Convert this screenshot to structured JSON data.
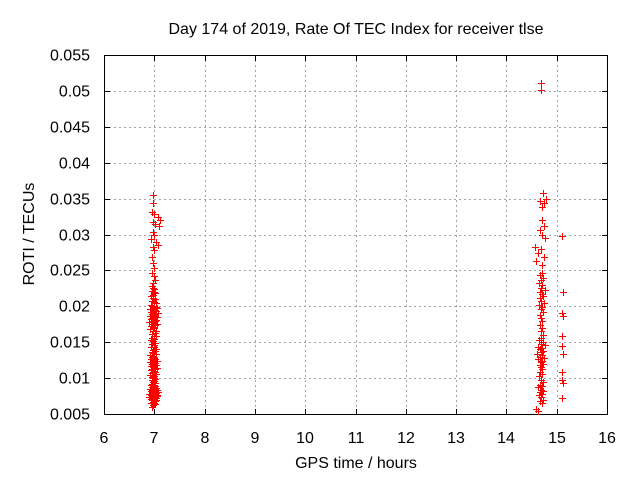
{
  "chart": {
    "title": "Day 174 of 2019, Rate Of TEC Index for receiver tlse",
    "xlabel": "GPS time / hours",
    "ylabel": "ROTI / TECUs"
  },
  "chart_data": {
    "type": "scatter",
    "title": "Day 174 of 2019, Rate Of TEC Index for receiver tlse",
    "xlabel": "GPS time / hours",
    "ylabel": "ROTI / TECUs",
    "xlim": [
      6,
      16
    ],
    "ylim": [
      0.005,
      0.055
    ],
    "x_ticks": {
      "values": [
        6,
        7,
        8,
        9,
        10,
        11,
        12,
        13,
        14,
        15,
        16
      ],
      "labels": [
        "6",
        "7",
        "8",
        "9",
        "10",
        "11",
        "12",
        "13",
        "14",
        "15",
        "16"
      ]
    },
    "y_ticks": {
      "values": [
        0.005,
        0.01,
        0.015,
        0.02,
        0.025,
        0.03,
        0.035,
        0.04,
        0.045,
        0.05,
        0.055
      ],
      "labels": [
        "0.005",
        "0.01",
        "0.015",
        "0.02",
        "0.025",
        "0.03",
        "0.035",
        "0.04",
        "0.045",
        "0.05",
        "0.055"
      ]
    },
    "grid": true,
    "legend": "none",
    "marker": {
      "shape": "plus",
      "color": "#ff0000",
      "size": 7
    },
    "grid_color": "#a3a3a3",
    "axis_color": "#000000",
    "series": [
      {
        "name": "ROTI",
        "points": [
          [
            6.98,
            0.0355
          ],
          [
            6.97,
            0.0344
          ],
          [
            6.95,
            0.0331
          ],
          [
            6.99,
            0.0328
          ],
          [
            7.08,
            0.0324
          ],
          [
            7.12,
            0.032
          ],
          [
            6.97,
            0.0318
          ],
          [
            7.02,
            0.0315
          ],
          [
            7.1,
            0.0312
          ],
          [
            6.98,
            0.0304
          ],
          [
            7.0,
            0.0299
          ],
          [
            6.94,
            0.0294
          ],
          [
            7.04,
            0.0289
          ],
          [
            7.07,
            0.0286
          ],
          [
            6.97,
            0.0283
          ],
          [
            6.99,
            0.0278
          ],
          [
            6.96,
            0.0269
          ],
          [
            6.98,
            0.0261
          ],
          [
            7.0,
            0.0254
          ],
          [
            6.96,
            0.0247
          ],
          [
            6.99,
            0.0242
          ],
          [
            7.02,
            0.0237
          ],
          [
            6.97,
            0.0232
          ],
          [
            6.95,
            0.0228
          ],
          [
            6.98,
            0.0226
          ],
          [
            7.0,
            0.0224
          ],
          [
            6.96,
            0.0222
          ],
          [
            6.99,
            0.022
          ],
          [
            7.01,
            0.0218
          ],
          [
            6.97,
            0.0216
          ],
          [
            6.94,
            0.0214
          ],
          [
            6.98,
            0.0212
          ],
          [
            7.02,
            0.021
          ],
          [
            6.96,
            0.0208
          ],
          [
            6.99,
            0.0206
          ],
          [
            7.04,
            0.0204
          ],
          [
            6.93,
            0.0202
          ],
          [
            7.0,
            0.0201
          ],
          [
            6.95,
            0.02
          ],
          [
            7.03,
            0.0199
          ],
          [
            6.98,
            0.0198
          ],
          [
            7.06,
            0.0197
          ],
          [
            6.92,
            0.0196
          ],
          [
            7.01,
            0.0195
          ],
          [
            6.97,
            0.0194
          ],
          [
            7.04,
            0.0193
          ],
          [
            6.94,
            0.0192
          ],
          [
            6.99,
            0.0191
          ],
          [
            7.07,
            0.019
          ],
          [
            6.96,
            0.0189
          ],
          [
            7.02,
            0.0188
          ],
          [
            6.91,
            0.0187
          ],
          [
            6.98,
            0.0186
          ],
          [
            7.05,
            0.0185
          ],
          [
            6.95,
            0.0184
          ],
          [
            7.0,
            0.0183
          ],
          [
            6.93,
            0.0182
          ],
          [
            7.03,
            0.0181
          ],
          [
            6.97,
            0.018
          ],
          [
            7.01,
            0.0179
          ],
          [
            6.9,
            0.0178
          ],
          [
            6.99,
            0.0177
          ],
          [
            7.05,
            0.0176
          ],
          [
            6.96,
            0.0175
          ],
          [
            7.02,
            0.0174
          ],
          [
            6.94,
            0.0172
          ],
          [
            6.98,
            0.0171
          ],
          [
            7.0,
            0.017
          ],
          [
            6.92,
            0.0168
          ],
          [
            7.04,
            0.0166
          ],
          [
            6.97,
            0.0165
          ],
          [
            7.01,
            0.0163
          ],
          [
            6.95,
            0.0161
          ],
          [
            6.99,
            0.0159
          ],
          [
            7.03,
            0.0158
          ],
          [
            6.96,
            0.0156
          ],
          [
            7.0,
            0.0155
          ],
          [
            6.93,
            0.0153
          ],
          [
            6.98,
            0.0151
          ],
          [
            7.02,
            0.0149
          ],
          [
            6.96,
            0.0147
          ],
          [
            7.0,
            0.0146
          ],
          [
            6.94,
            0.0144
          ],
          [
            6.99,
            0.0143
          ],
          [
            7.03,
            0.0141
          ],
          [
            6.97,
            0.0139
          ],
          [
            7.01,
            0.0138
          ],
          [
            6.95,
            0.0136
          ],
          [
            6.98,
            0.0135
          ],
          [
            7.04,
            0.0133
          ],
          [
            6.92,
            0.0132
          ],
          [
            7.0,
            0.013
          ],
          [
            6.96,
            0.0129
          ],
          [
            6.99,
            0.0128
          ],
          [
            7.02,
            0.0127
          ],
          [
            6.94,
            0.0126
          ],
          [
            6.98,
            0.0125
          ],
          [
            7.05,
            0.0124
          ],
          [
            6.91,
            0.0123
          ],
          [
            6.97,
            0.0122
          ],
          [
            7.01,
            0.0121
          ],
          [
            6.95,
            0.012
          ],
          [
            6.99,
            0.0119
          ],
          [
            7.03,
            0.0118
          ],
          [
            6.93,
            0.0117
          ],
          [
            6.98,
            0.0116
          ],
          [
            7.0,
            0.0115
          ],
          [
            7.05,
            0.0114
          ],
          [
            6.96,
            0.0113
          ],
          [
            7.02,
            0.0112
          ],
          [
            6.94,
            0.0111
          ],
          [
            6.99,
            0.011
          ],
          [
            6.97,
            0.0109
          ],
          [
            7.01,
            0.0108
          ],
          [
            6.95,
            0.0107
          ],
          [
            7.03,
            0.0106
          ],
          [
            6.98,
            0.0105
          ],
          [
            6.92,
            0.0104
          ],
          [
            7.0,
            0.0103
          ],
          [
            6.96,
            0.0102
          ],
          [
            6.99,
            0.01
          ],
          [
            7.02,
            0.0099
          ],
          [
            6.97,
            0.0098
          ],
          [
            6.95,
            0.0097
          ],
          [
            7.0,
            0.0096
          ],
          [
            6.98,
            0.0094
          ],
          [
            7.02,
            0.0093
          ],
          [
            6.96,
            0.0092
          ],
          [
            6.99,
            0.0091
          ],
          [
            6.94,
            0.009
          ],
          [
            7.01,
            0.0089
          ],
          [
            7.0,
            0.0088
          ],
          [
            6.95,
            0.0087
          ],
          [
            7.04,
            0.0086
          ],
          [
            6.98,
            0.0086
          ],
          [
            6.91,
            0.0085
          ],
          [
            7.02,
            0.0084
          ],
          [
            6.96,
            0.0084
          ],
          [
            7.06,
            0.0083
          ],
          [
            6.99,
            0.0082
          ],
          [
            6.93,
            0.0082
          ],
          [
            7.01,
            0.0081
          ],
          [
            6.97,
            0.008
          ],
          [
            7.08,
            0.008
          ],
          [
            6.95,
            0.0079
          ],
          [
            7.03,
            0.0079
          ],
          [
            6.9,
            0.0078
          ],
          [
            6.99,
            0.0078
          ],
          [
            7.05,
            0.0077
          ],
          [
            6.96,
            0.0077
          ],
          [
            7.01,
            0.0076
          ],
          [
            6.93,
            0.0076
          ],
          [
            6.98,
            0.0075
          ],
          [
            7.06,
            0.0075
          ],
          [
            6.95,
            0.0074
          ],
          [
            7.02,
            0.0074
          ],
          [
            6.89,
            0.0073
          ],
          [
            6.99,
            0.0073
          ],
          [
            7.04,
            0.0072
          ],
          [
            6.96,
            0.0072
          ],
          [
            7.0,
            0.0071
          ],
          [
            6.93,
            0.0071
          ],
          [
            6.98,
            0.007
          ],
          [
            7.03,
            0.007
          ],
          [
            6.95,
            0.0069
          ],
          [
            7.01,
            0.0068
          ],
          [
            6.97,
            0.0067
          ],
          [
            6.99,
            0.0066
          ],
          [
            6.94,
            0.0065
          ],
          [
            7.02,
            0.0064
          ],
          [
            6.98,
            0.0062
          ],
          [
            6.96,
            0.006
          ],
          [
            14.69,
            0.0511
          ],
          [
            14.69,
            0.0501
          ],
          [
            14.73,
            0.0358
          ],
          [
            14.78,
            0.035
          ],
          [
            14.67,
            0.0347
          ],
          [
            14.75,
            0.0344
          ],
          [
            14.71,
            0.0338
          ],
          [
            14.7,
            0.032
          ],
          [
            14.74,
            0.0312
          ],
          [
            14.66,
            0.0306
          ],
          [
            14.71,
            0.0299
          ],
          [
            14.76,
            0.0295
          ],
          [
            14.57,
            0.0283
          ],
          [
            14.68,
            0.028
          ],
          [
            14.62,
            0.0274
          ],
          [
            14.74,
            0.0269
          ],
          [
            14.59,
            0.0263
          ],
          [
            14.7,
            0.0258
          ],
          [
            14.7,
            0.0247
          ],
          [
            14.66,
            0.0243
          ],
          [
            14.73,
            0.024
          ],
          [
            14.69,
            0.0236
          ],
          [
            14.64,
            0.0232
          ],
          [
            14.71,
            0.0229
          ],
          [
            14.68,
            0.0226
          ],
          [
            14.76,
            0.0223
          ],
          [
            14.66,
            0.022
          ],
          [
            14.7,
            0.0217
          ],
          [
            14.72,
            0.0214
          ],
          [
            14.67,
            0.0211
          ],
          [
            14.69,
            0.0208
          ],
          [
            14.74,
            0.0205
          ],
          [
            14.65,
            0.0202
          ],
          [
            14.7,
            0.0199
          ],
          [
            14.68,
            0.0196
          ],
          [
            14.72,
            0.0192
          ],
          [
            14.66,
            0.0188
          ],
          [
            14.69,
            0.0184
          ],
          [
            14.71,
            0.0179
          ],
          [
            14.67,
            0.0174
          ],
          [
            14.7,
            0.017
          ],
          [
            14.68,
            0.0165
          ],
          [
            14.72,
            0.016
          ],
          [
            14.69,
            0.0156
          ],
          [
            14.65,
            0.0153
          ],
          [
            14.72,
            0.015
          ],
          [
            14.68,
            0.0148
          ],
          [
            14.76,
            0.0146
          ],
          [
            14.62,
            0.0144
          ],
          [
            14.7,
            0.0142
          ],
          [
            14.66,
            0.014
          ],
          [
            14.73,
            0.0138
          ],
          [
            14.69,
            0.0136
          ],
          [
            14.6,
            0.0134
          ],
          [
            14.71,
            0.0132
          ],
          [
            14.67,
            0.013
          ],
          [
            14.75,
            0.0128
          ],
          [
            14.63,
            0.0126
          ],
          [
            14.7,
            0.0124
          ],
          [
            14.68,
            0.0122
          ],
          [
            14.72,
            0.012
          ],
          [
            14.66,
            0.0118
          ],
          [
            14.69,
            0.0115
          ],
          [
            14.71,
            0.0112
          ],
          [
            14.67,
            0.0109
          ],
          [
            14.7,
            0.0106
          ],
          [
            14.65,
            0.0103
          ],
          [
            14.68,
            0.0097
          ],
          [
            14.72,
            0.0094
          ],
          [
            14.66,
            0.0091
          ],
          [
            14.7,
            0.0089
          ],
          [
            14.63,
            0.0087
          ],
          [
            14.69,
            0.0084
          ],
          [
            14.73,
            0.0082
          ],
          [
            14.67,
            0.008
          ],
          [
            14.71,
            0.0078
          ],
          [
            14.65,
            0.0076
          ],
          [
            14.69,
            0.0073
          ],
          [
            14.72,
            0.007
          ],
          [
            14.67,
            0.0068
          ],
          [
            14.7,
            0.0066
          ],
          [
            14.58,
            0.0057
          ],
          [
            14.62,
            0.0054
          ],
          [
            15.11,
            0.0298
          ],
          [
            15.12,
            0.022
          ],
          [
            15.1,
            0.019
          ],
          [
            15.12,
            0.0186
          ],
          [
            15.11,
            0.0159
          ],
          [
            15.1,
            0.0145
          ],
          [
            15.12,
            0.0134
          ],
          [
            15.11,
            0.0109
          ],
          [
            15.1,
            0.0097
          ],
          [
            15.12,
            0.0093
          ],
          [
            15.11,
            0.0072
          ]
        ]
      }
    ]
  }
}
